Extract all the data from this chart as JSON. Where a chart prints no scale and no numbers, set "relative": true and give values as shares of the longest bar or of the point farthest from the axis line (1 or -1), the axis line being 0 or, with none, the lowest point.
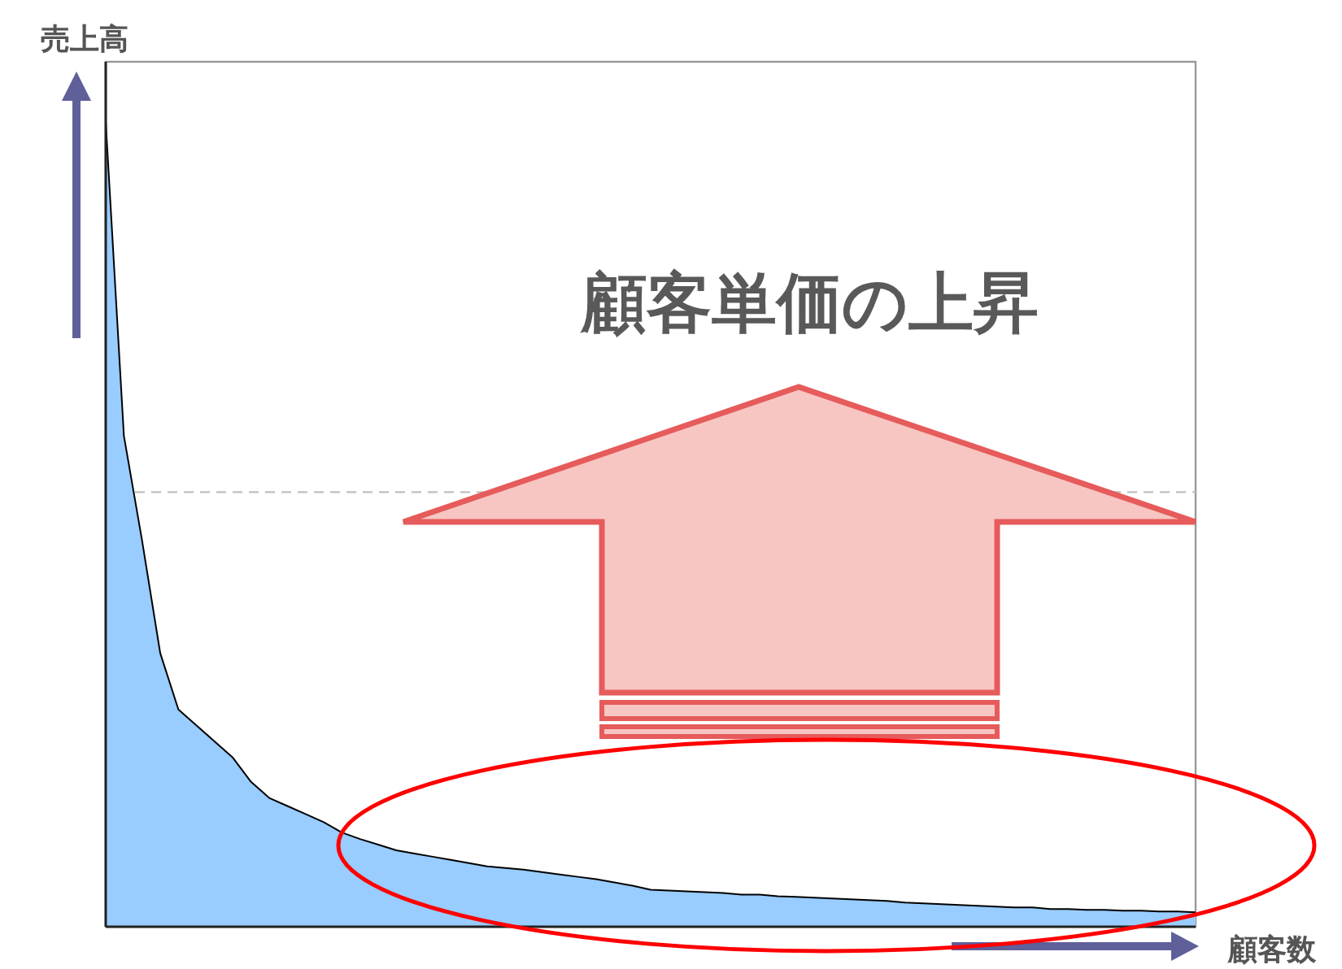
{
  "chart_data": {
    "type": "area",
    "relative": true,
    "xlabel": "顧客数",
    "ylabel": "売上高",
    "annotations": [
      "顧客単価の上昇"
    ],
    "categories": [
      null,
      null,
      null,
      null,
      null,
      null,
      null,
      null,
      null,
      null,
      null,
      null,
      null,
      null,
      null,
      null,
      null,
      null,
      null,
      null,
      null,
      null,
      null,
      null,
      null,
      null,
      null,
      null,
      null,
      null,
      null,
      null,
      null,
      null,
      null,
      null,
      null,
      null,
      null,
      null,
      null,
      null,
      null,
      null,
      null,
      null,
      null,
      null,
      null,
      null,
      null,
      null,
      null,
      null,
      null,
      null,
      null,
      null,
      null,
      null,
      null
    ],
    "series": [
      {
        "color": "#99ccff",
        "values": [
          1.0,
          0.61,
          0.48,
          0.34,
          0.27,
          0.25,
          0.23,
          0.21,
          0.18,
          0.16,
          0.15,
          0.14,
          0.13,
          0.117,
          0.109,
          0.102,
          0.095,
          0.091,
          0.087,
          0.083,
          0.079,
          0.075,
          0.073,
          0.071,
          0.068,
          0.065,
          0.062,
          0.059,
          0.055,
          0.051,
          0.046,
          0.045,
          0.044,
          0.043,
          0.042,
          0.04,
          0.04,
          0.038,
          0.037,
          0.036,
          0.035,
          0.034,
          0.033,
          0.032,
          0.03,
          0.029,
          0.028,
          0.027,
          0.026,
          0.025,
          0.024,
          0.024,
          0.022,
          0.022,
          0.021,
          0.021,
          0.02,
          0.02,
          0.019,
          0.019,
          0.018
        ]
      }
    ],
    "ref_lines": [
      {
        "axis": "y",
        "value": 0.54,
        "color": "#c0c0c0",
        "line_style": "dashed"
      }
    ]
  }
}
